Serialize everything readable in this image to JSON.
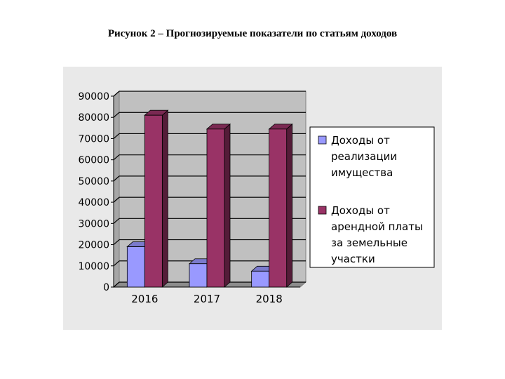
{
  "caption": "Рисунок 2 – Прогнозируемые показатели по статьям доходов",
  "chart_data": {
    "type": "bar",
    "categories": [
      "2016",
      "2017",
      "2018"
    ],
    "series": [
      {
        "name": "Доходы от реализации имущества",
        "values": [
          19000,
          11000,
          7500
        ],
        "color": "#9999ff"
      },
      {
        "name": "Доходы от арендной платы за земельные участки",
        "values": [
          81000,
          74500,
          74500
        ],
        "color": "#993366"
      }
    ],
    "ylim": [
      0,
      90000
    ],
    "yticks": [
      0,
      10000,
      20000,
      30000,
      40000,
      50000,
      60000,
      70000,
      80000,
      90000
    ],
    "legend_position": "right",
    "grid": true,
    "legend_lines": [
      [
        "Доходы от",
        "реализации",
        "имущества"
      ],
      [
        "Доходы от",
        "арендной платы",
        "за земельные",
        "участки"
      ]
    ]
  }
}
